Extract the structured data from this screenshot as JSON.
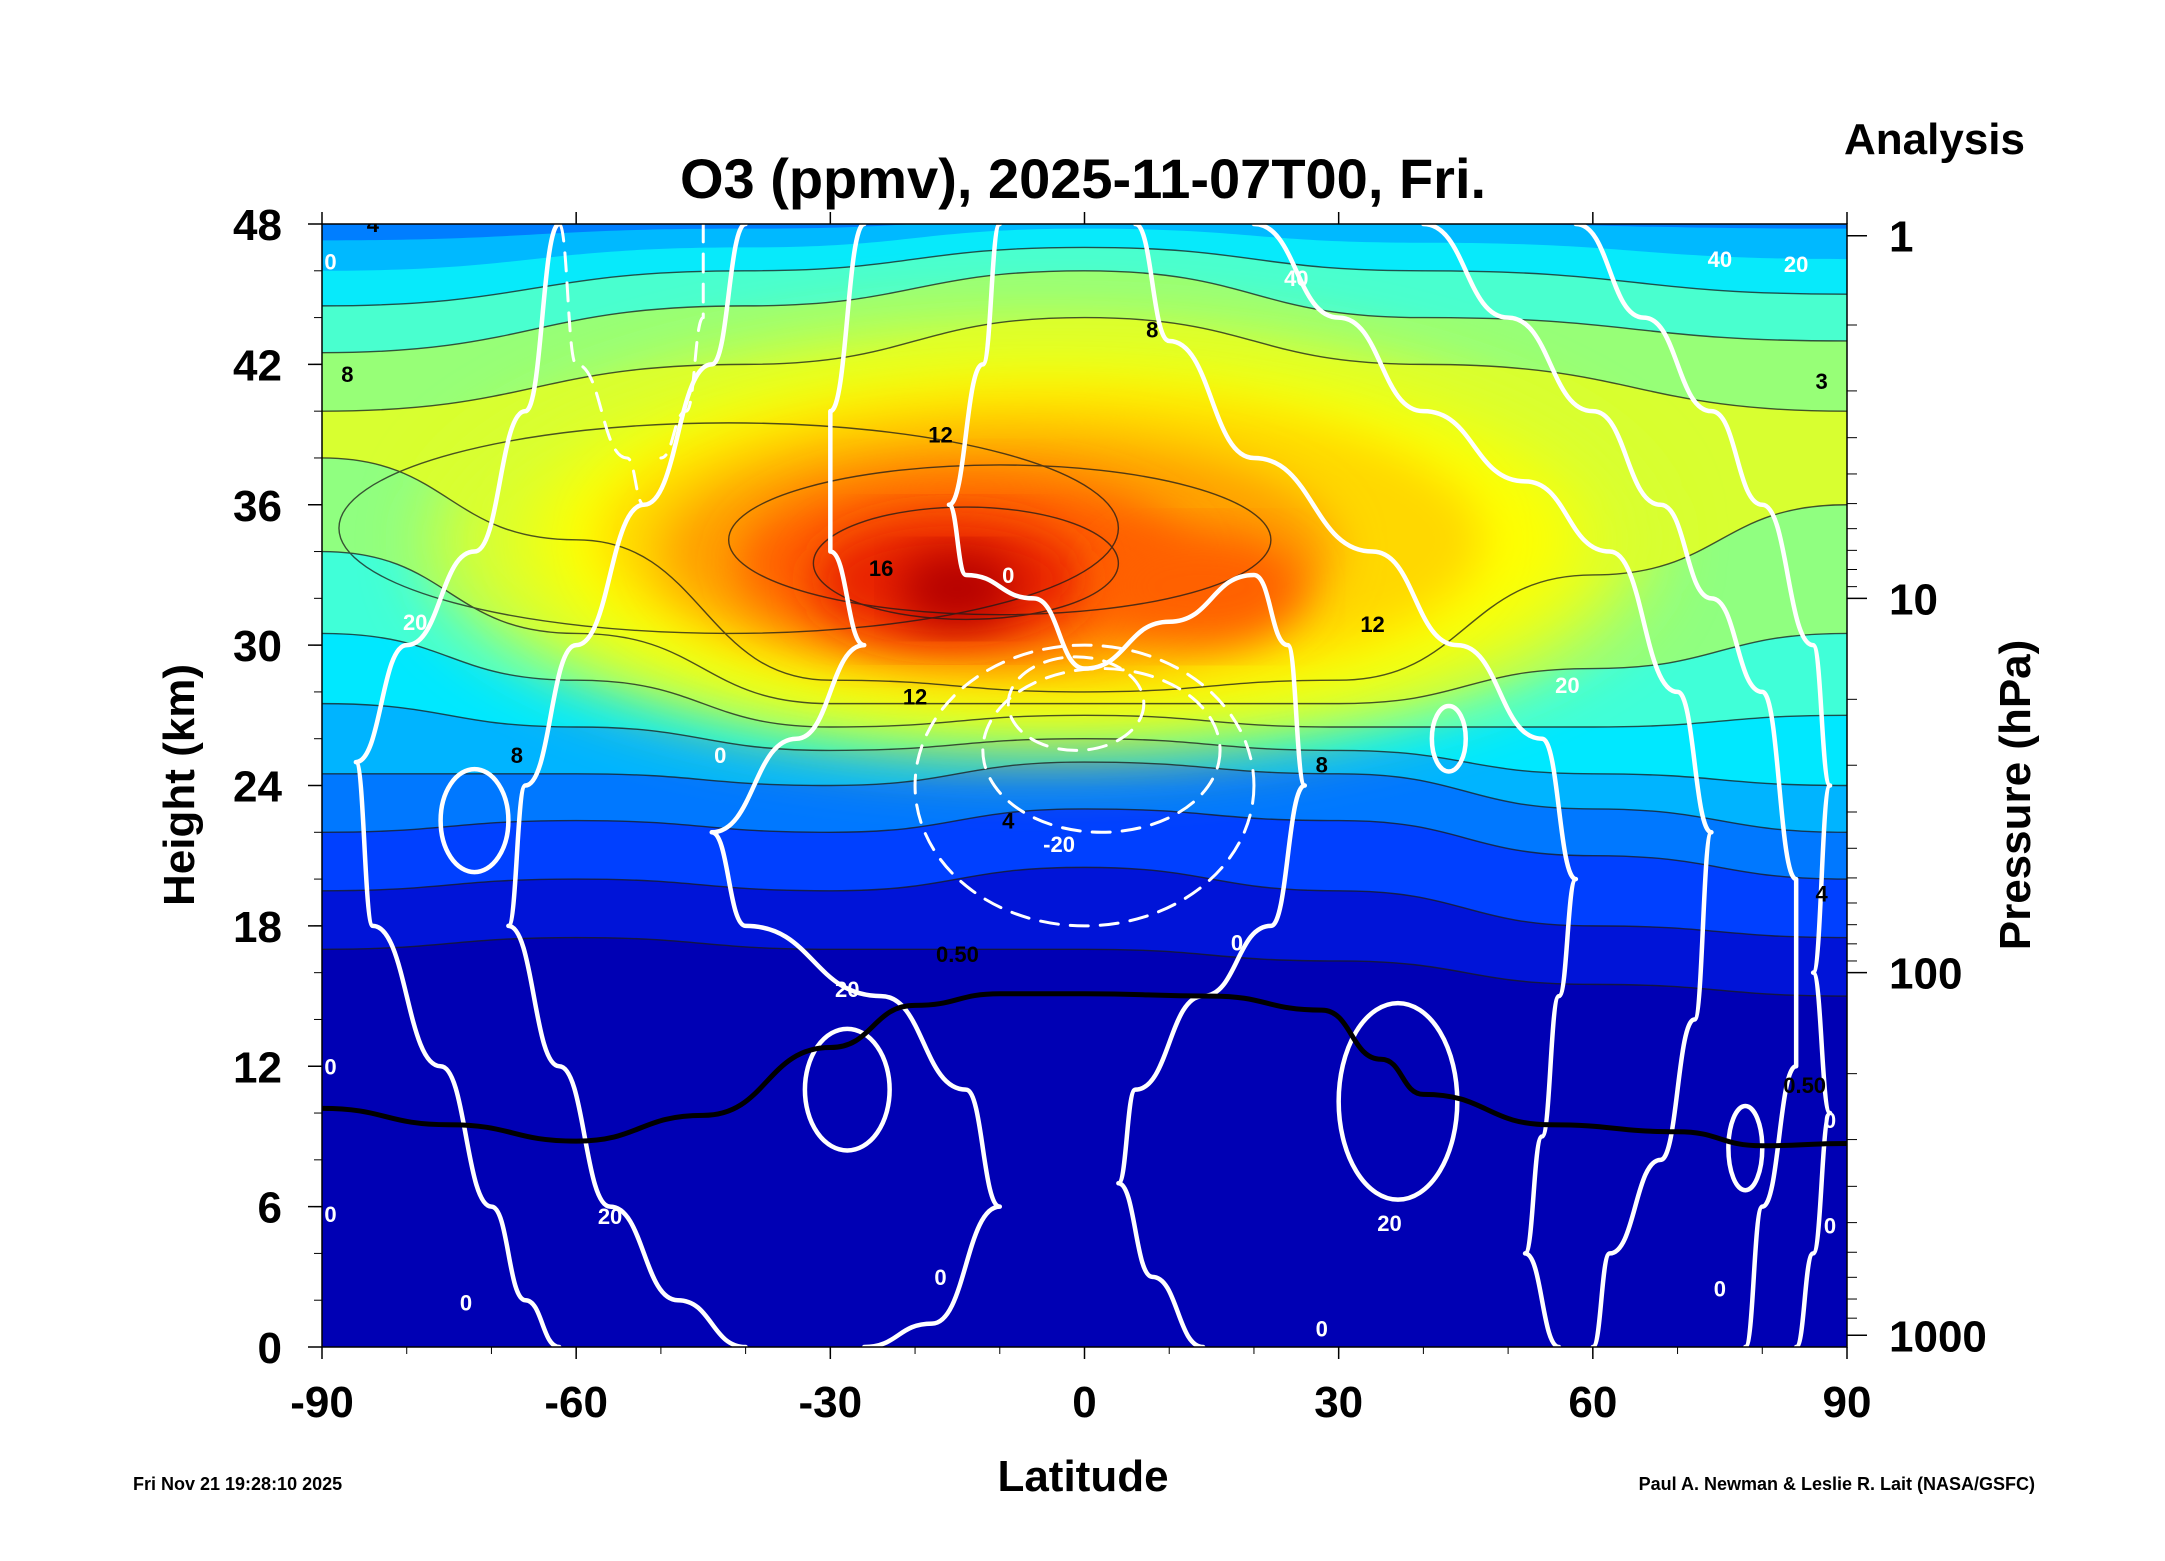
{
  "chart_data": {
    "type": "heatmap",
    "title": "O3 (ppmv), 2025-11-07T00, Fri.",
    "subtitle": "Analysis",
    "xlabel": "Latitude",
    "ylabel": "Height (km)",
    "y2label": "Pressure (hPa)",
    "xlim": [
      -90,
      90
    ],
    "ylim": [
      0,
      48
    ],
    "x_ticks": [
      -90,
      -60,
      -30,
      0,
      30,
      60,
      90
    ],
    "y_ticks": [
      0,
      6,
      12,
      18,
      24,
      30,
      36,
      42,
      48
    ],
    "y2_ticks": [
      {
        "label": "1",
        "height_km": 47.5
      },
      {
        "label": "10",
        "height_km": 32
      },
      {
        "label": "100",
        "height_km": 16
      },
      {
        "label": "1000",
        "height_km": 0.5
      }
    ],
    "colorscale": [
      "#0000b4",
      "#0014d8",
      "#0040ff",
      "#0078ff",
      "#00b4ff",
      "#00e8ff",
      "#40ffd8",
      "#90ff80",
      "#d8ff30",
      "#ffff00",
      "#ffd800",
      "#ffa000",
      "#ff6000",
      "#e82000",
      "#b40000"
    ],
    "ozone_contours": [
      {
        "label": "4",
        "lat": -84,
        "height_km": 47.9
      },
      {
        "label": "8",
        "lat": -87,
        "height_km": 41.5
      },
      {
        "label": "8",
        "lat": 8,
        "height_km": 43.4
      },
      {
        "label": "12",
        "lat": -17,
        "height_km": 38.9
      },
      {
        "label": "16",
        "lat": -24,
        "height_km": 33.2
      },
      {
        "label": "12",
        "lat": 34,
        "height_km": 30.8
      },
      {
        "label": "12",
        "lat": -20,
        "height_km": 27.7
      },
      {
        "label": "8",
        "lat": -67,
        "height_km": 25.2
      },
      {
        "label": "8",
        "lat": 28,
        "height_km": 24.8
      },
      {
        "label": "4",
        "lat": -9,
        "height_km": 22.4
      },
      {
        "label": "4",
        "lat": 87,
        "height_km": 19.3
      },
      {
        "label": "0.50",
        "lat": -15,
        "height_km": 16.7
      },
      {
        "label": "0.50",
        "lat": 85,
        "height_km": 11.1
      },
      {
        "label": "3",
        "lat": 87,
        "height_km": 41.2
      }
    ],
    "wind_contours": [
      {
        "label": "0",
        "lat": -89,
        "height_km": 46.3
      },
      {
        "label": "40",
        "lat": 25,
        "height_km": 45.6
      },
      {
        "label": "40",
        "lat": 75,
        "height_km": 46.4
      },
      {
        "label": "20",
        "lat": 84,
        "height_km": 46.2
      },
      {
        "label": "0",
        "lat": -9,
        "height_km": 32.9
      },
      {
        "label": "20",
        "lat": -79,
        "height_km": 30.9
      },
      {
        "label": "0",
        "lat": -43,
        "height_km": 25.2
      },
      {
        "label": "20",
        "lat": 57,
        "height_km": 28.2
      },
      {
        "label": "-20",
        "lat": -3,
        "height_km": 21.4
      },
      {
        "label": "0",
        "lat": 18,
        "height_km": 17.2
      },
      {
        "label": "20",
        "lat": -28,
        "height_km": 15.2
      },
      {
        "label": "20",
        "lat": -56,
        "height_km": 5.5
      },
      {
        "label": "20",
        "lat": 36,
        "height_km": 5.2
      },
      {
        "label": "0",
        "lat": -73,
        "height_km": 1.8
      },
      {
        "label": "0",
        "lat": -17,
        "height_km": 2.9
      },
      {
        "label": "0",
        "lat": 28,
        "height_km": 0.7
      },
      {
        "label": "0",
        "lat": 75,
        "height_km": 2.4
      },
      {
        "label": "0",
        "lat": 88,
        "height_km": 5.1
      },
      {
        "label": "0",
        "lat": 88,
        "height_km": 9.6
      },
      {
        "label": "0",
        "lat": -89,
        "height_km": 5.6
      },
      {
        "label": "0",
        "lat": -89,
        "height_km": 11.9
      }
    ],
    "tropopause_line": [
      [
        -90,
        10.2
      ],
      [
        -75,
        9.5
      ],
      [
        -60,
        8.8
      ],
      [
        -45,
        9.9
      ],
      [
        -30,
        12.8
      ],
      [
        -20,
        14.6
      ],
      [
        -10,
        15.1
      ],
      [
        0,
        15.1
      ],
      [
        15,
        15.0
      ],
      [
        28,
        14.4
      ],
      [
        35,
        12.3
      ],
      [
        40,
        10.8
      ],
      [
        55,
        9.5
      ],
      [
        70,
        9.2
      ],
      [
        80,
        8.6
      ],
      [
        90,
        8.7
      ]
    ]
  },
  "footer": {
    "timestamp": "Fri Nov 21 19:28:10 2025",
    "credit": "Paul A. Newman & Leslie R. Lait (NASA/GSFC)"
  }
}
